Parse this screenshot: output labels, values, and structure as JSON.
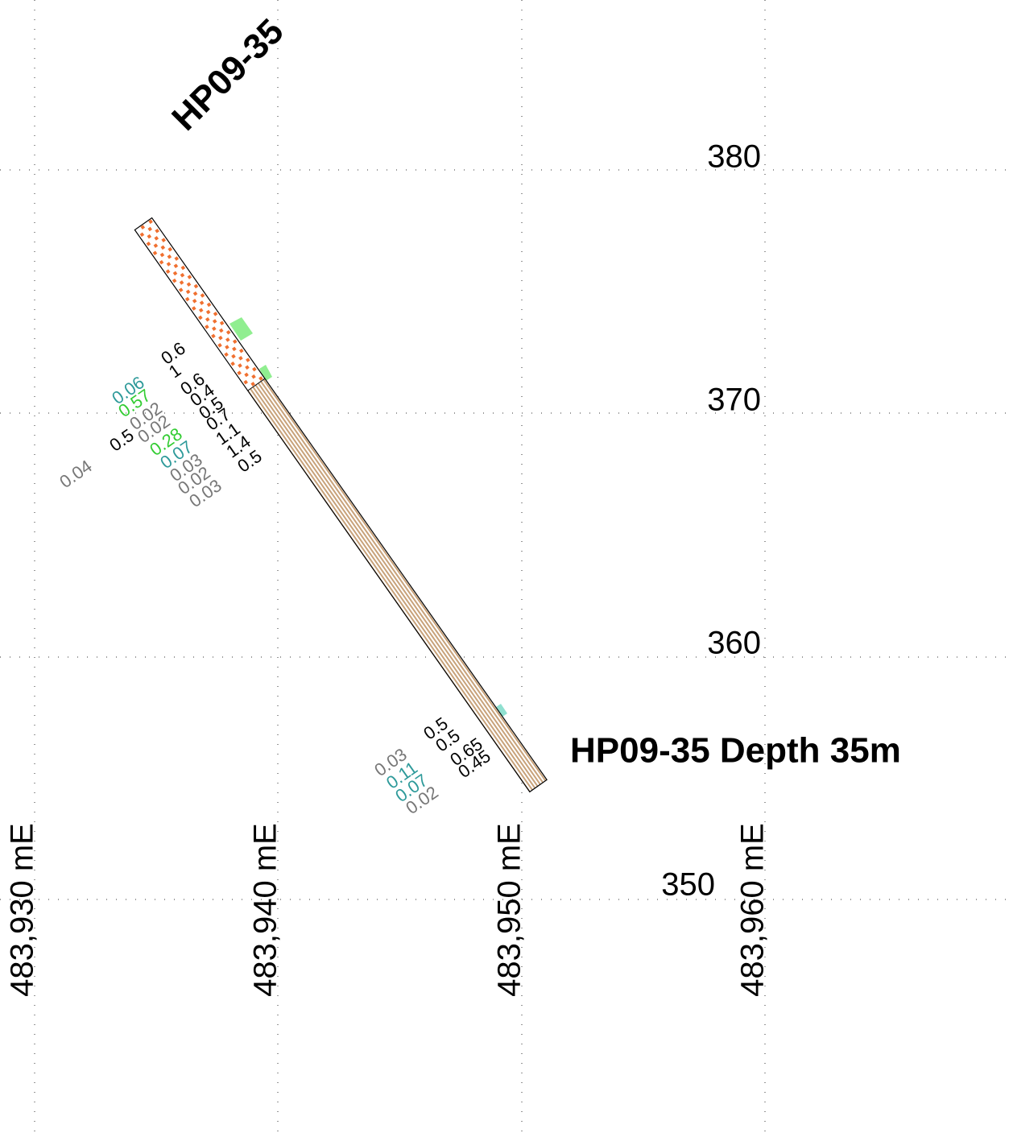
{
  "hole": {
    "name": "HP09-35",
    "label": "HP09-35  Depth 35m"
  },
  "elevations": [
    "380",
    "370",
    "360",
    "350"
  ],
  "eastings": [
    "483,930 mE",
    "483,940 mE",
    "483,950 mE",
    "483,960 mE"
  ],
  "assays": [
    {
      "text": "0.6",
      "color": "#000000"
    },
    {
      "text": "1",
      "color": "#000000"
    },
    {
      "text": "0.6",
      "color": "#000000"
    },
    {
      "text": "0.4",
      "color": "#000000"
    },
    {
      "text": "0.5",
      "color": "#000000"
    },
    {
      "text": "0.7",
      "color": "#000000"
    },
    {
      "text": "1.1",
      "color": "#000000"
    },
    {
      "text": "1.4",
      "color": "#000000"
    },
    {
      "text": "0.5",
      "color": "#000000"
    },
    {
      "text": "0.06",
      "color": "#2e9a9a"
    },
    {
      "text": "0.57",
      "color": "#33cc33"
    },
    {
      "text": "0.02",
      "color": "#777777"
    },
    {
      "text": "0.02",
      "color": "#777777"
    },
    {
      "text": "0.5",
      "color": "#000000"
    },
    {
      "text": "0.28",
      "color": "#33cc33"
    },
    {
      "text": "0.07",
      "color": "#2e9a9a"
    },
    {
      "text": "0.03",
      "color": "#777777"
    },
    {
      "text": "0.02",
      "color": "#777777"
    },
    {
      "text": "0.03",
      "color": "#777777"
    },
    {
      "text": "0.04",
      "color": "#777777"
    },
    {
      "text": "0.5",
      "color": "#000000"
    },
    {
      "text": "0.5",
      "color": "#000000"
    },
    {
      "text": "0.65",
      "color": "#000000"
    },
    {
      "text": "0.45",
      "color": "#000000"
    },
    {
      "text": "0.03",
      "color": "#777777"
    },
    {
      "text": "0.11",
      "color": "#2e9a9a"
    },
    {
      "text": "0.07",
      "color": "#2e9a9a"
    },
    {
      "text": "0.02",
      "color": "#777777"
    }
  ]
}
